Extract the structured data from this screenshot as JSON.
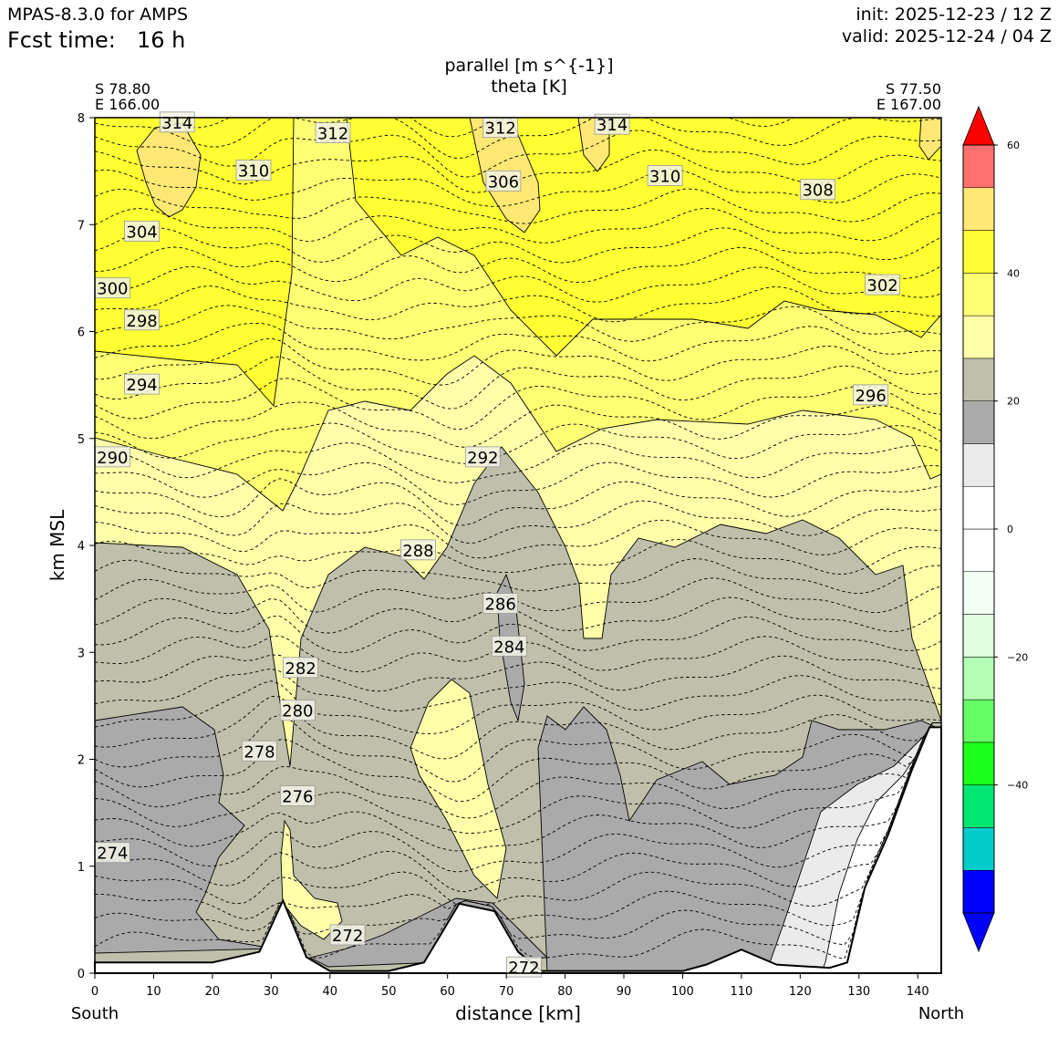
{
  "header": {
    "model": "MPAS-8.3.0 for AMPS",
    "fcst_label": "Fcst time:",
    "fcst_value": "16 h",
    "init": "init: 2025-12-23 / 12 Z",
    "valid": "valid: 2025-12-24 / 04 Z"
  },
  "colors": {
    "ramp": [
      "#0000ff",
      "#0000ff",
      "#00cccc",
      "#00e673",
      "#1aff1a",
      "#66ff66",
      "#b3ffb3",
      "#e0ffe0",
      "#f2fff2",
      "#ffffff",
      "#ffffff",
      "#ebebeb",
      "#aaaaaa",
      "#bfbfab",
      "#ffffaa",
      "#ffff73",
      "#ffff33",
      "#ffe873",
      "#ff7070",
      "#ff0000"
    ],
    "terrain": "#ffffff"
  },
  "chart_data": {
    "type": "cross-section",
    "title_line1": "parallel [m s^{-1}]",
    "title_line2": "theta [K]",
    "left_endpoint": {
      "lat": "S 78.80",
      "lon": "E 166.00"
    },
    "right_endpoint": {
      "lat": "S 77.50",
      "lon": "E 167.00"
    },
    "xlabel": "distance [km]",
    "ylabel": "km MSL",
    "x_left_label": "South",
    "x_right_label": "North",
    "xlim": [
      0,
      144
    ],
    "ylim": [
      0,
      8
    ],
    "xticks": [
      0,
      10,
      20,
      30,
      40,
      50,
      60,
      70,
      80,
      90,
      100,
      110,
      120,
      130,
      140
    ],
    "yticks": [
      0,
      1,
      2,
      3,
      4,
      5,
      6,
      7,
      8
    ],
    "colorbar": {
      "range": [
        -56,
        64
      ],
      "ticks": [
        60,
        40,
        20,
        0,
        -20,
        -40
      ],
      "tick_labels": [
        "60",
        "40",
        "20",
        "0",
        "−20",
        "−40"
      ],
      "levels": [
        -48,
        -42,
        -36,
        -30,
        -24,
        -18,
        -12,
        -6,
        0,
        6,
        12,
        18,
        24,
        30,
        36,
        42,
        48,
        54,
        60
      ]
    },
    "terrain_km": [
      [
        0,
        0.1
      ],
      [
        10,
        0.1
      ],
      [
        20,
        0.1
      ],
      [
        28,
        0.2
      ],
      [
        32,
        0.68
      ],
      [
        36,
        0.15
      ],
      [
        40,
        0.02
      ],
      [
        50,
        0.02
      ],
      [
        56,
        0.1
      ],
      [
        62,
        0.65
      ],
      [
        68,
        0.58
      ],
      [
        72,
        0.2
      ],
      [
        76,
        0.02
      ],
      [
        100,
        0.02
      ],
      [
        104,
        0.08
      ],
      [
        110,
        0.22
      ],
      [
        116,
        0.08
      ],
      [
        125,
        0.05
      ],
      [
        128,
        0.1
      ],
      [
        131,
        0.8
      ],
      [
        135,
        1.3
      ],
      [
        139,
        1.9
      ],
      [
        142,
        2.3
      ],
      [
        144,
        2.3
      ]
    ],
    "theta_contour_labels": [
      {
        "value": "314",
        "x": 14,
        "y": 7.95
      },
      {
        "value": "312",
        "x": 40.5,
        "y": 7.85
      },
      {
        "value": "312",
        "x": 69,
        "y": 7.9
      },
      {
        "value": "314",
        "x": 88,
        "y": 7.93
      },
      {
        "value": "310",
        "x": 27,
        "y": 7.5
      },
      {
        "value": "306",
        "x": 69.5,
        "y": 7.4
      },
      {
        "value": "310",
        "x": 97,
        "y": 7.45
      },
      {
        "value": "308",
        "x": 123,
        "y": 7.32
      },
      {
        "value": "304",
        "x": 8,
        "y": 6.93
      },
      {
        "value": "302",
        "x": 134,
        "y": 6.43
      },
      {
        "value": "300",
        "x": 3,
        "y": 6.4
      },
      {
        "value": "298",
        "x": 8,
        "y": 6.1
      },
      {
        "value": "294",
        "x": 8,
        "y": 5.5
      },
      {
        "value": "296",
        "x": 132,
        "y": 5.4
      },
      {
        "value": "290",
        "x": 3,
        "y": 4.82
      },
      {
        "value": "292",
        "x": 66,
        "y": 4.82
      },
      {
        "value": "288",
        "x": 55,
        "y": 3.95
      },
      {
        "value": "286",
        "x": 69,
        "y": 3.45
      },
      {
        "value": "284",
        "x": 70.5,
        "y": 3.05
      },
      {
        "value": "282",
        "x": 35,
        "y": 2.85
      },
      {
        "value": "280",
        "x": 34.5,
        "y": 2.45
      },
      {
        "value": "278",
        "x": 28,
        "y": 2.07
      },
      {
        "value": "276",
        "x": 34.5,
        "y": 1.65
      },
      {
        "value": "274",
        "x": 3,
        "y": 1.12
      },
      {
        "value": "272",
        "x": 43,
        "y": 0.35
      },
      {
        "value": "272",
        "x": 73,
        "y": 0.05
      }
    ]
  }
}
